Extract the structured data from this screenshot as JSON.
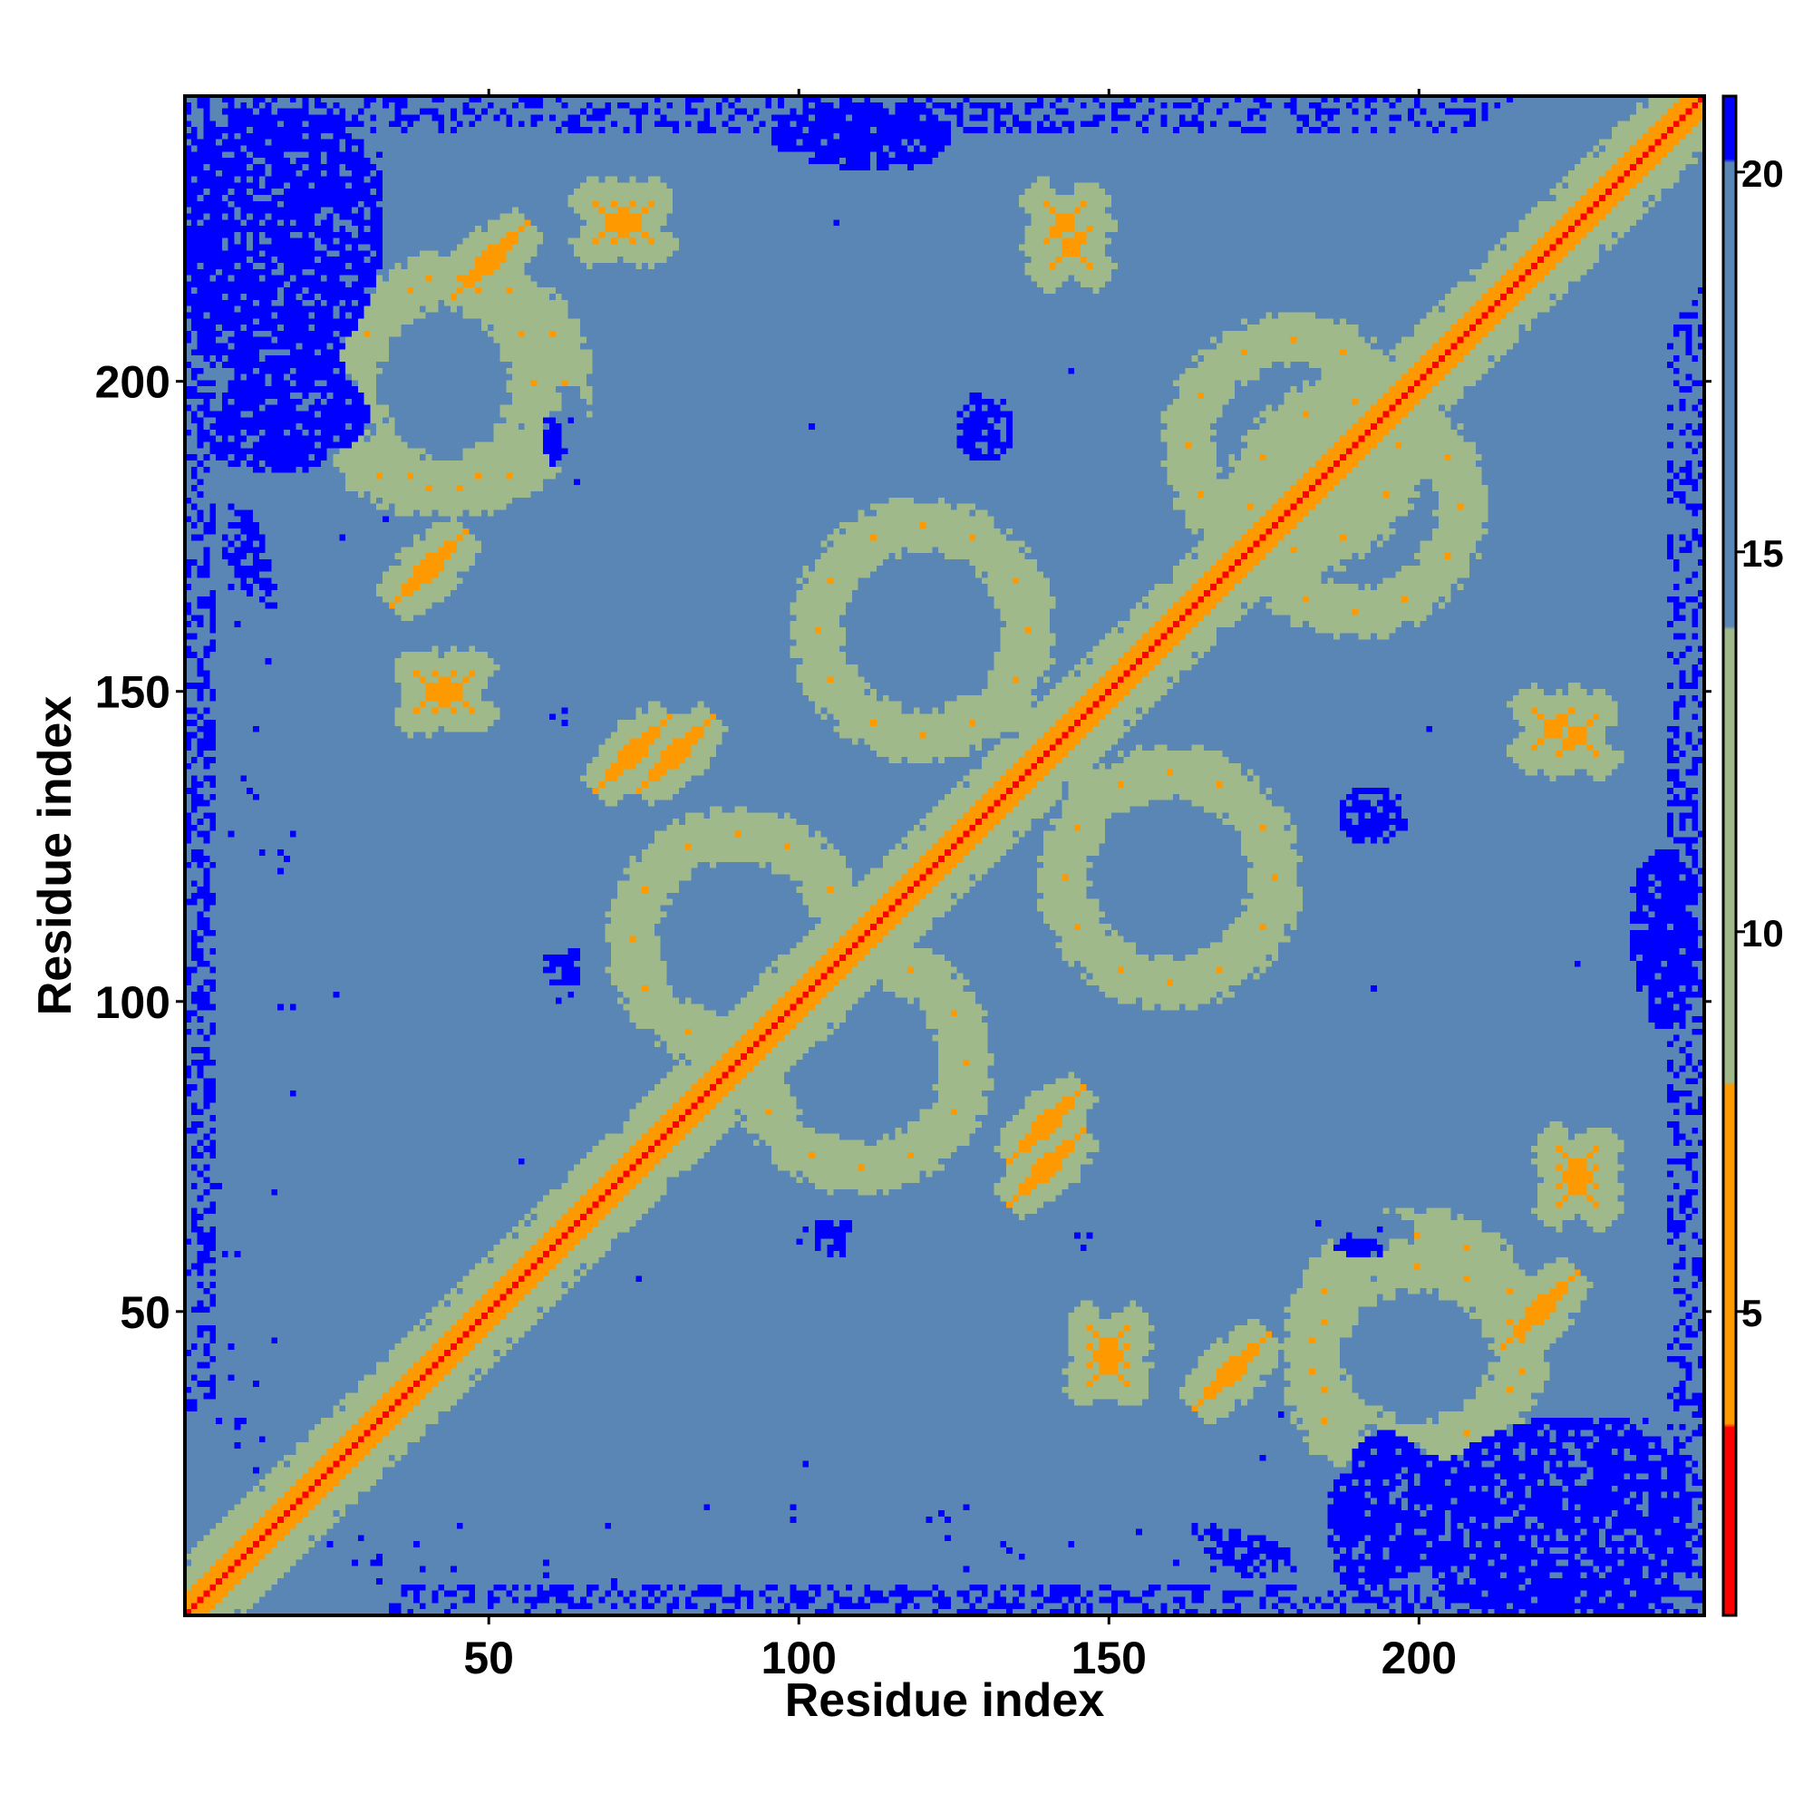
{
  "chart_data": {
    "type": "heatmap",
    "title": "",
    "xlabel": "Residue index",
    "ylabel": "Residue index",
    "xlim": [
      1,
      246
    ],
    "ylim": [
      1,
      246
    ],
    "x_ticks": [
      50,
      100,
      150,
      200
    ],
    "y_ticks": [
      50,
      100,
      150,
      200
    ],
    "colorbar": {
      "range": [
        1,
        21
      ],
      "ticks": [
        5,
        10,
        15,
        20
      ],
      "colors": {
        "very_close": "#ff0000",
        "close": "#ff9900",
        "mid": "#9fb98a",
        "far": "#5a86b6",
        "beyond": "#0000ff"
      },
      "breaks": [
        8,
        15,
        20
      ]
    },
    "diagonal_structures": [
      {
        "center": [
          46,
          46
        ],
        "kind": "cross",
        "strength": 1.0
      },
      {
        "center": [
          74,
          74
        ],
        "kind": "cross",
        "strength": 1.0
      },
      {
        "center": [
          145,
          145
        ],
        "kind": "cross",
        "strength": 1.0
      },
      {
        "center": [
          157,
          157
        ],
        "kind": "cross",
        "strength": 0.9
      },
      {
        "center": [
          222,
          222
        ],
        "kind": "cross",
        "strength": 0.9
      },
      {
        "center": [
          20,
          20
        ],
        "kind": "cross",
        "strength": 0.7
      },
      {
        "center": [
          104,
          104
        ],
        "kind": "cross",
        "strength": 0.6
      },
      {
        "center": [
          128,
          128
        ],
        "kind": "cross",
        "strength": 0.6
      }
    ],
    "off_diagonal_contacts": [
      {
        "x": 50,
        "y": 220,
        "kind": "line",
        "strength": 0.9
      },
      {
        "x": 40,
        "y": 170,
        "kind": "line",
        "strength": 0.9
      },
      {
        "x": 73,
        "y": 140,
        "kind": "line",
        "strength": 0.9
      },
      {
        "x": 41,
        "y": 150,
        "kind": "cross",
        "strength": 0.6
      },
      {
        "x": 70,
        "y": 226,
        "kind": "cross",
        "strength": 0.6
      },
      {
        "x": 143,
        "y": 226,
        "kind": "cross",
        "strength": 0.5
      },
      {
        "x": 140,
        "y": 80,
        "kind": "line",
        "strength": 0.9
      },
      {
        "x": 170,
        "y": 40,
        "kind": "line",
        "strength": 0.9
      },
      {
        "x": 220,
        "y": 50,
        "kind": "line",
        "strength": 0.9
      },
      {
        "x": 226,
        "y": 73,
        "kind": "cross",
        "strength": 0.6
      },
      {
        "x": 150,
        "y": 44,
        "kind": "cross",
        "strength": 0.6
      },
      {
        "x": 222,
        "y": 144,
        "kind": "cross",
        "strength": 0.5
      },
      {
        "x": 40,
        "y": 200,
        "kind": "loop",
        "strength": 0.6
      },
      {
        "x": 90,
        "y": 110,
        "kind": "loop",
        "strength": 0.6
      },
      {
        "x": 120,
        "y": 160,
        "kind": "loop",
        "strength": 0.6
      },
      {
        "x": 180,
        "y": 190,
        "kind": "loop",
        "strength": 0.6
      },
      {
        "x": 200,
        "y": 45,
        "kind": "loop",
        "strength": 0.6
      }
    ],
    "blue_regions": [
      {
        "x": 15,
        "y": 215,
        "rx": 22,
        "ry": 30
      },
      {
        "x": 10,
        "y": 100,
        "rx": 9,
        "ry": 80
      },
      {
        "x": 228,
        "y": 15,
        "rx": 28,
        "ry": 18
      },
      {
        "x": 185,
        "y": 18,
        "rx": 22,
        "ry": 14
      },
      {
        "x": 120,
        "y": 240,
        "rx": 25,
        "ry": 6
      },
      {
        "x": 130,
        "y": 195,
        "rx": 6,
        "ry": 8
      },
      {
        "x": 190,
        "y": 130,
        "rx": 9,
        "ry": 5
      },
      {
        "x": 109,
        "y": 62,
        "rx": 7,
        "ry": 4
      },
      {
        "x": 146,
        "y": 62,
        "rx": 4,
        "ry": 6
      },
      {
        "x": 193,
        "y": 62,
        "rx": 7,
        "ry": 4
      },
      {
        "x": 58,
        "y": 190,
        "rx": 4,
        "ry": 5
      },
      {
        "x": 61,
        "y": 102,
        "rx": 4,
        "ry": 6
      },
      {
        "x": 227,
        "y": 103,
        "rx": 5,
        "ry": 6
      },
      {
        "x": 240,
        "y": 110,
        "rx": 6,
        "ry": 15
      },
      {
        "x": 105,
        "y": 214,
        "rx": 7,
        "ry": 4
      }
    ]
  }
}
